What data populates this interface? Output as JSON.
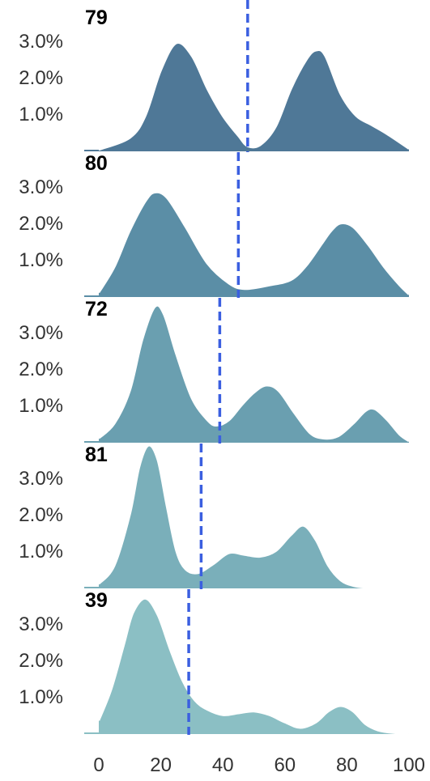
{
  "chart_data": {
    "type": "area",
    "chart_kind": "ridgeline density",
    "x_ticks": [
      "0",
      "20",
      "40",
      "60",
      "80",
      "100"
    ],
    "y_ticks": [
      "1.0%",
      "2.0%",
      "3.0%"
    ],
    "xlim": [
      0,
      100
    ],
    "ylim_percent": [
      0,
      3.9
    ],
    "grid": false,
    "legend": "none",
    "marker_style": "blue dashed vertical line",
    "marker_color": "#3b5fe0",
    "panels": [
      {
        "title": "79",
        "color": "#4f7897",
        "marker_x": 48,
        "x": [
          0,
          10,
          15,
          20,
          25,
          30,
          35,
          40,
          45,
          48,
          52,
          57,
          62,
          67,
          70,
          73,
          78,
          83,
          88,
          93,
          100
        ],
        "y": [
          0.02,
          0.35,
          0.95,
          2.2,
          2.95,
          2.6,
          1.7,
          0.95,
          0.4,
          0.12,
          0.15,
          0.65,
          1.7,
          2.5,
          2.75,
          2.6,
          1.55,
          0.95,
          0.7,
          0.45,
          0.05
        ]
      },
      {
        "title": "80",
        "color": "#5b8ea6",
        "marker_x": 45,
        "x": [
          0,
          5,
          10,
          15,
          18,
          22,
          28,
          35,
          42,
          47,
          55,
          62,
          67,
          72,
          75,
          78,
          82,
          87,
          92,
          97,
          100
        ],
        "y": [
          0.1,
          0.8,
          1.8,
          2.6,
          2.85,
          2.7,
          1.9,
          0.9,
          0.35,
          0.2,
          0.3,
          0.45,
          0.85,
          1.45,
          1.8,
          2.0,
          1.9,
          1.4,
          0.8,
          0.3,
          0.05
        ]
      },
      {
        "title": "72",
        "color": "#6a9fb0",
        "marker_x": 39,
        "x": [
          0,
          5,
          10,
          14,
          18,
          21,
          25,
          30,
          35,
          38,
          42,
          46,
          50,
          54,
          58,
          63,
          68,
          72,
          77,
          82,
          86,
          89,
          93,
          97,
          100
        ],
        "y": [
          0.1,
          0.5,
          1.4,
          2.8,
          3.7,
          3.5,
          2.4,
          1.2,
          0.6,
          0.45,
          0.6,
          1.0,
          1.35,
          1.55,
          1.4,
          0.8,
          0.25,
          0.1,
          0.15,
          0.5,
          0.85,
          0.9,
          0.6,
          0.2,
          0.02
        ]
      },
      {
        "title": "81",
        "color": "#7aafba",
        "marker_x": 33,
        "x": [
          0,
          5,
          10,
          13,
          16,
          19,
          22,
          25,
          28,
          32,
          37,
          42,
          47,
          52,
          57,
          62,
          66,
          70,
          74,
          78,
          82,
          86,
          90,
          100
        ],
        "y": [
          0.1,
          0.6,
          2.0,
          3.3,
          4.0,
          3.5,
          2.2,
          1.0,
          0.5,
          0.4,
          0.65,
          0.95,
          0.9,
          0.85,
          1.0,
          1.45,
          1.7,
          1.3,
          0.6,
          0.2,
          0.05,
          0.0,
          0.0,
          0.0
        ]
      },
      {
        "title": "39",
        "color": "#8bbfc4",
        "marker_x": 29,
        "x": [
          0,
          4,
          8,
          11,
          15,
          19,
          23,
          27,
          31,
          35,
          40,
          45,
          50,
          55,
          60,
          65,
          70,
          74,
          78,
          82,
          86,
          90,
          95,
          100
        ],
        "y": [
          0.35,
          1.2,
          2.4,
          3.3,
          3.7,
          3.25,
          2.3,
          1.45,
          0.9,
          0.65,
          0.5,
          0.55,
          0.6,
          0.5,
          0.3,
          0.15,
          0.3,
          0.6,
          0.75,
          0.6,
          0.25,
          0.08,
          0.01,
          0.0
        ]
      }
    ]
  }
}
